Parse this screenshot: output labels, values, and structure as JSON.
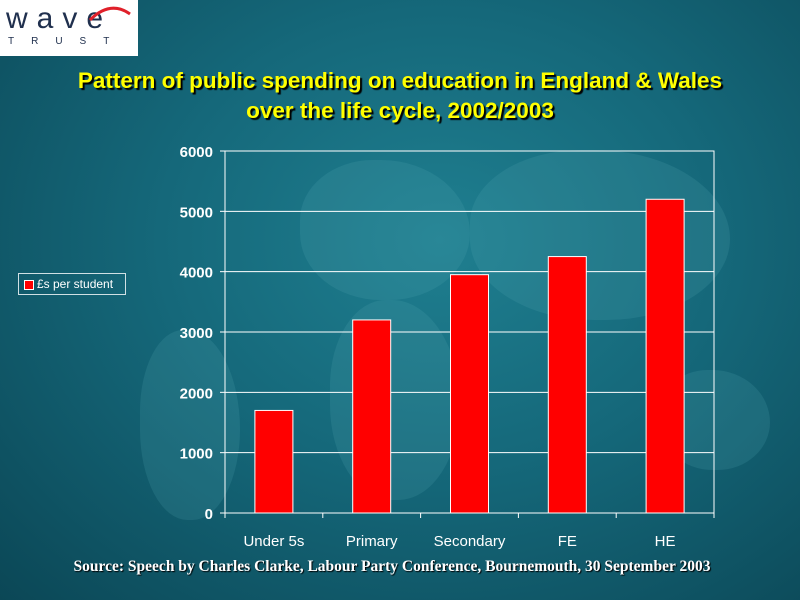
{
  "logo": {
    "word": "wave",
    "sub": "TRUST"
  },
  "title_line1": "Pattern of public spending on education in England & Wales",
  "title_line2": "over the life cycle, 2002/2003",
  "source": "Source: Speech by Charles Clarke, Labour Party Conference, Bournemouth, 30 September 2003",
  "colors": {
    "bar": "#ff0000",
    "title": "#ffff00",
    "background": "#15687a"
  },
  "chart_data": {
    "type": "bar",
    "title": "Pattern of public spending on education in England & Wales over the life cycle, 2002/2003",
    "categories": [
      "Under 5s",
      "Primary",
      "Secondary",
      "FE",
      "HE"
    ],
    "series": [
      {
        "name": "£s per student",
        "values": [
          1700,
          3200,
          3950,
          4250,
          5200
        ]
      }
    ],
    "yticks": [
      "0",
      "1000",
      "2000",
      "3000",
      "4000",
      "5000",
      "6000"
    ],
    "ylim": [
      0,
      6000
    ],
    "grid": true,
    "legend": "left"
  }
}
